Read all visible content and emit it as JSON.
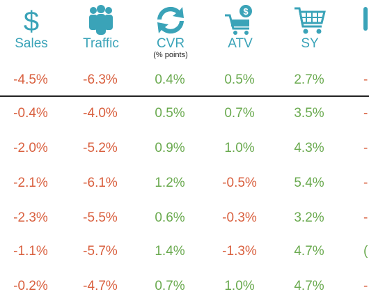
{
  "columns": [
    {
      "label": "Sales",
      "sublabel": "",
      "icon": "dollar-icon"
    },
    {
      "label": "Traffic",
      "sublabel": "",
      "icon": "people-icon"
    },
    {
      "label": "CVR",
      "sublabel": "(% points)",
      "icon": "refresh-cycle-icon"
    },
    {
      "label": "ATV",
      "sublabel": "",
      "icon": "cart-dollar-icon"
    },
    {
      "label": "SY",
      "sublabel": "",
      "icon": "shopping-cart-icon"
    }
  ],
  "colors": {
    "header_teal": "#3aa3b8",
    "negative": "#d9603f",
    "positive": "#6aaa4f",
    "divider": "#222222"
  },
  "rows": [
    [
      "-4.5%",
      "-6.3%",
      "0.4%",
      "0.5%",
      "2.7%"
    ],
    [
      "-0.4%",
      "-4.0%",
      "0.5%",
      "0.7%",
      "3.5%"
    ],
    [
      "-2.0%",
      "-5.2%",
      "0.9%",
      "1.0%",
      "4.3%"
    ],
    [
      "-2.1%",
      "-6.1%",
      "1.2%",
      "-0.5%",
      "5.4%"
    ],
    [
      "-2.3%",
      "-5.5%",
      "0.6%",
      "-0.3%",
      "3.2%"
    ],
    [
      "-1.1%",
      "-5.7%",
      "1.4%",
      "-1.3%",
      "4.7%"
    ],
    [
      "-0.2%",
      "-4.7%",
      "0.7%",
      "1.0%",
      "4.7%"
    ]
  ],
  "partial_column_glyphs": [
    "-",
    "-",
    "-",
    "-",
    "-",
    "(",
    "-"
  ]
}
